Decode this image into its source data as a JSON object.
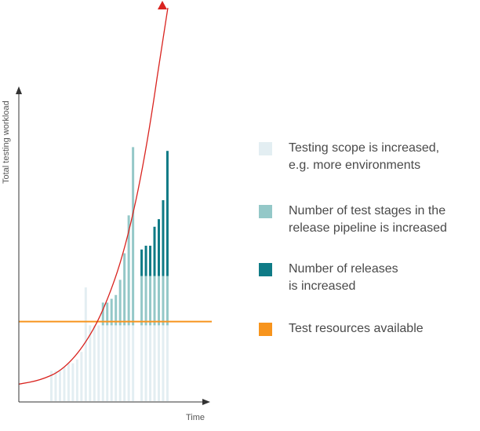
{
  "chart_data": {
    "type": "bar",
    "xlabel": "Time",
    "ylabel": "Total testing workload",
    "ylim": [
      0,
      100
    ],
    "colors": {
      "scope": "#e3eef2",
      "stages": "#94c8c8",
      "releases": "#0f7b86",
      "resources": "#f7941d",
      "curve": "#d9231f",
      "axis": "#333333"
    },
    "series": [
      {
        "name": "Testing scope is increased,\ne.g. more environments",
        "color_key": "scope",
        "values": [
          8,
          8,
          8,
          9,
          10,
          10,
          11,
          13,
          30,
          20,
          20,
          20,
          20,
          20,
          20,
          20,
          20,
          20,
          20,
          20,
          0,
          20,
          20,
          20,
          20,
          20,
          20,
          20
        ]
      },
      {
        "name": "Number of test stages in the\nrelease pipeline is increased",
        "color_key": "stages",
        "values": [
          0,
          0,
          0,
          0,
          0,
          0,
          0,
          0,
          0,
          0,
          0,
          0,
          6,
          6,
          7,
          8,
          12,
          19,
          29,
          47,
          0,
          13,
          13,
          13,
          13,
          13,
          13,
          13
        ]
      },
      {
        "name": "Number of releases\nis increased",
        "color_key": "releases",
        "values": [
          0,
          0,
          0,
          0,
          0,
          0,
          0,
          0,
          0,
          0,
          0,
          0,
          0,
          0,
          0,
          0,
          0,
          0,
          0,
          0,
          0,
          7,
          8,
          8,
          13,
          15,
          20,
          33
        ]
      }
    ],
    "reference_line": {
      "name": "Test resources available",
      "color_key": "resources",
      "value": 21
    },
    "curve": {
      "color_key": "curve",
      "points": [
        [
          0,
          4.5
        ],
        [
          4,
          5.5
        ],
        [
          8,
          8
        ],
        [
          12,
          14
        ],
        [
          16,
          24
        ],
        [
          20,
          40
        ],
        [
          24,
          66
        ],
        [
          28,
          105
        ]
      ]
    }
  }
}
